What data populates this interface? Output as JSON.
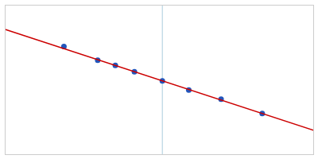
{
  "chart_data": {
    "type": "scatter",
    "series": [
      {
        "type": "scatter",
        "color": "#2255bb",
        "x": [
          -0.65,
          -0.42,
          -0.3,
          -0.17,
          0.02,
          0.2,
          0.42,
          0.7
        ],
        "values": [
          0.125,
          0.0736,
          0.054,
          0.0306,
          -0.0036,
          -0.038,
          -0.0726,
          -0.126
        ]
      },
      {
        "type": "line",
        "color": "#cc0000",
        "x": [
          -1.05,
          1.05
        ],
        "values": [
          0.189,
          -0.189
        ]
      }
    ],
    "vlines": [
      {
        "x": 0.02,
        "color": "#aaccdd"
      }
    ],
    "xlim": [
      -1.05,
      1.05
    ],
    "ylim": [
      -0.28,
      0.28
    ],
    "xticks": [],
    "yticks": [],
    "tick_labels": false
  }
}
